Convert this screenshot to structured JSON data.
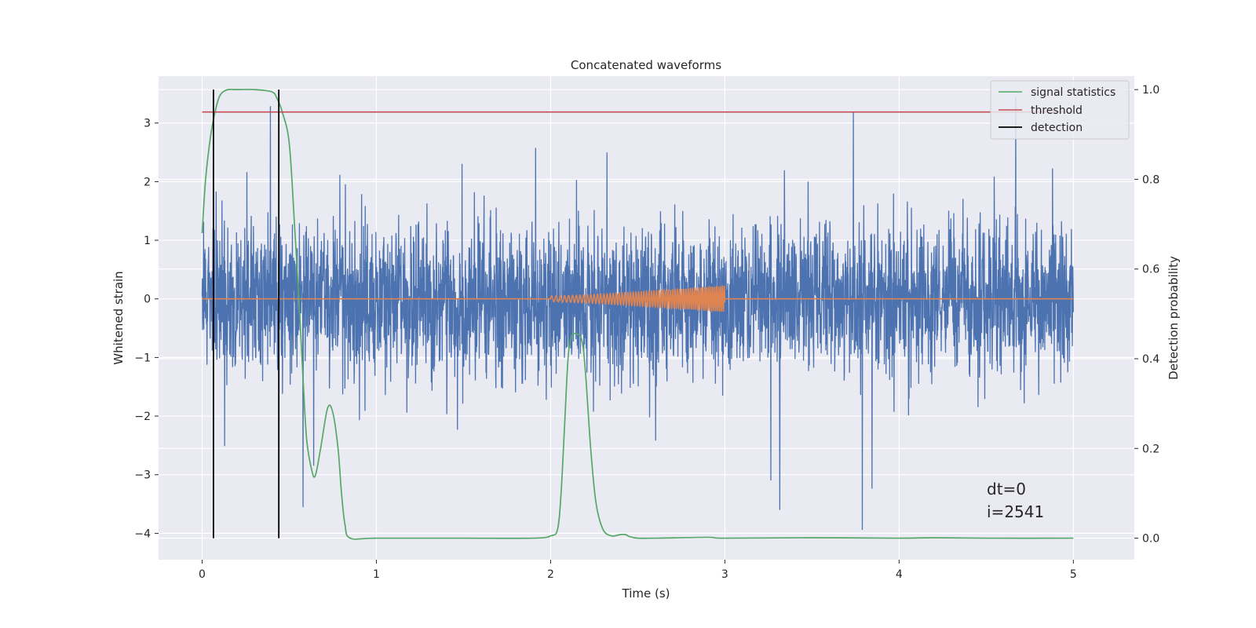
{
  "chart_data": {
    "type": "line",
    "title": "Concatenated waveforms",
    "xlabel": "Time (s)",
    "ylabel": "Whitened strain",
    "ylabel_right": "Detection probability",
    "xlim": [
      -0.25,
      5.35
    ],
    "ylim": [
      -4.45,
      3.8
    ],
    "ylim_right": [
      -0.048,
      1.03
    ],
    "xticks": [
      0,
      1,
      2,
      3,
      4,
      5
    ],
    "xtick_labels": [
      "0",
      "1",
      "2",
      "3",
      "4",
      "5"
    ],
    "yticks": [
      -4,
      -3,
      -2,
      -1,
      0,
      1,
      2,
      3
    ],
    "ytick_labels": [
      "−4",
      "−3",
      "−2",
      "−1",
      "0",
      "1",
      "2",
      "3"
    ],
    "yticks_right": [
      0.0,
      0.2,
      0.4,
      0.6,
      0.8,
      1.0
    ],
    "ytick_labels_right": [
      "0.0",
      "0.2",
      "0.4",
      "0.6",
      "0.8",
      "1.0"
    ],
    "grid": true,
    "legend_position": "top-right",
    "series": [
      {
        "name": "whitened strain",
        "color": "#4c72b0",
        "axis": "left",
        "kind": "noise",
        "x_range": [
          0,
          5
        ],
        "typical_amplitude": [
          -1.0,
          1.1
        ],
        "peak_range": [
          -4.1,
          3.45
        ]
      },
      {
        "name": "injected waveform",
        "color": "#dd8452",
        "axis": "left",
        "kind": "chirp",
        "x_range": [
          0,
          5
        ],
        "chirp_span": [
          2.0,
          3.0
        ],
        "chirp_amplitude_start": 0.05,
        "chirp_amplitude_end": 0.22
      },
      {
        "name": "signal statistics",
        "color": "#55a868",
        "axis": "right",
        "x": [
          0.0,
          0.02,
          0.05,
          0.08,
          0.1,
          0.12,
          0.15,
          0.2,
          0.3,
          0.4,
          0.43,
          0.46,
          0.5,
          0.53,
          0.56,
          0.58,
          0.6,
          0.63,
          0.65,
          0.68,
          0.72,
          0.75,
          0.78,
          0.8,
          0.82,
          0.85,
          1.0,
          1.5,
          1.9,
          2.0,
          2.04,
          2.06,
          2.08,
          2.1,
          2.12,
          2.15,
          2.18,
          2.2,
          2.23,
          2.26,
          2.3,
          2.35,
          2.4,
          2.43,
          2.45,
          2.5,
          2.6,
          2.9,
          3.0,
          3.5,
          4.0,
          4.2,
          4.5,
          5.0
        ],
        "values": [
          0.68,
          0.8,
          0.9,
          0.96,
          0.985,
          0.995,
          1.0,
          1.0,
          1.0,
          0.995,
          0.98,
          0.95,
          0.88,
          0.7,
          0.5,
          0.35,
          0.22,
          0.15,
          0.14,
          0.2,
          0.29,
          0.28,
          0.2,
          0.1,
          0.03,
          0.0,
          0.0,
          0.0,
          0.0,
          0.005,
          0.02,
          0.1,
          0.25,
          0.4,
          0.45,
          0.455,
          0.44,
          0.37,
          0.2,
          0.08,
          0.02,
          0.005,
          0.008,
          0.008,
          0.004,
          0.0,
          0.0,
          0.002,
          0.0,
          0.001,
          0.0,
          0.001,
          0.0,
          0.0
        ]
      },
      {
        "name": "threshold",
        "color": "#c44e52",
        "axis": "right",
        "x": [
          0,
          5
        ],
        "values": [
          0.95,
          0.95
        ]
      },
      {
        "name": "detection",
        "color": "#000000",
        "axis": "right",
        "kind": "vlines",
        "x": [
          0.065,
          0.44
        ],
        "y_range": [
          0.0,
          1.0
        ]
      }
    ],
    "legend": [
      {
        "label": "signal statistics",
        "color": "#55a868"
      },
      {
        "label": "threshold",
        "color": "#c44e52"
      },
      {
        "label": "detection",
        "color": "#000000"
      }
    ],
    "annotation": [
      "dt=0",
      "i=2541"
    ]
  }
}
